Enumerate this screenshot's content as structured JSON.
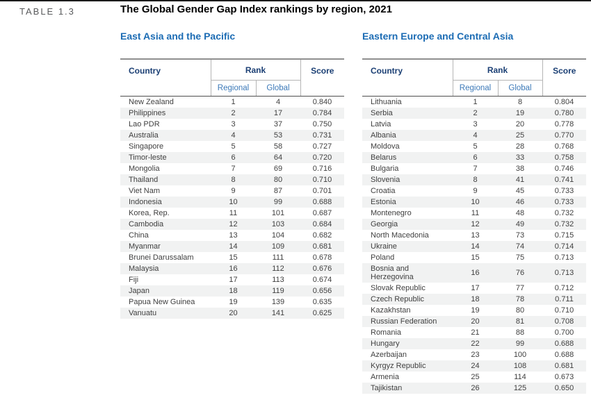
{
  "page": {
    "table_label": "TABLE 1.3",
    "title": "The Global Gender Gap Index rankings by region, 2021"
  },
  "colors": {
    "region_title_blue": "#1c6cb4",
    "header_navy": "#1b3f74",
    "subheader_blue": "#3c79b8",
    "row_stripe": "#f1f2f2",
    "data_text": "#404040"
  },
  "tables": [
    {
      "title": "East Asia and the Pacific",
      "headers": {
        "country": "Country",
        "rank": "Rank",
        "regional": "Regional",
        "global": "Global",
        "score": "Score"
      },
      "rows": [
        {
          "country": "New Zealand",
          "regional": "1",
          "global": "4",
          "score": "0.840"
        },
        {
          "country": "Philippines",
          "regional": "2",
          "global": "17",
          "score": "0.784"
        },
        {
          "country": "Lao PDR",
          "regional": "3",
          "global": "37",
          "score": "0.750"
        },
        {
          "country": "Australia",
          "regional": "4",
          "global": "53",
          "score": "0.731"
        },
        {
          "country": "Singapore",
          "regional": "5",
          "global": "58",
          "score": "0.727"
        },
        {
          "country": "Timor-leste",
          "regional": "6",
          "global": "64",
          "score": "0.720"
        },
        {
          "country": "Mongolia",
          "regional": "7",
          "global": "69",
          "score": "0.716"
        },
        {
          "country": "Thailand",
          "regional": "8",
          "global": "80",
          "score": "0.710"
        },
        {
          "country": "Viet Nam",
          "regional": "9",
          "global": "87",
          "score": "0.701"
        },
        {
          "country": "Indonesia",
          "regional": "10",
          "global": "99",
          "score": "0.688"
        },
        {
          "country": "Korea, Rep.",
          "regional": "11",
          "global": "101",
          "score": "0.687"
        },
        {
          "country": "Cambodia",
          "regional": "12",
          "global": "103",
          "score": "0.684"
        },
        {
          "country": "China",
          "regional": "13",
          "global": "104",
          "score": "0.682"
        },
        {
          "country": "Myanmar",
          "regional": "14",
          "global": "109",
          "score": "0.681"
        },
        {
          "country": "Brunei Darussalam",
          "regional": "15",
          "global": "111",
          "score": "0.678"
        },
        {
          "country": "Malaysia",
          "regional": "16",
          "global": "112",
          "score": "0.676"
        },
        {
          "country": "Fiji",
          "regional": "17",
          "global": "113",
          "score": "0.674"
        },
        {
          "country": "Japan",
          "regional": "18",
          "global": "119",
          "score": "0.656"
        },
        {
          "country": "Papua New Guinea",
          "regional": "19",
          "global": "139",
          "score": "0.635"
        },
        {
          "country": "Vanuatu",
          "regional": "20",
          "global": "141",
          "score": "0.625"
        }
      ]
    },
    {
      "title": "Eastern Europe and Central Asia",
      "headers": {
        "country": "Country",
        "rank": "Rank",
        "regional": "Regional",
        "global": "Global",
        "score": "Score"
      },
      "rows": [
        {
          "country": "Lithuania",
          "regional": "1",
          "global": "8",
          "score": "0.804"
        },
        {
          "country": "Serbia",
          "regional": "2",
          "global": "19",
          "score": "0.780"
        },
        {
          "country": "Latvia",
          "regional": "3",
          "global": "20",
          "score": "0.778"
        },
        {
          "country": "Albania",
          "regional": "4",
          "global": "25",
          "score": "0.770"
        },
        {
          "country": "Moldova",
          "regional": "5",
          "global": "28",
          "score": "0.768"
        },
        {
          "country": "Belarus",
          "regional": "6",
          "global": "33",
          "score": "0.758"
        },
        {
          "country": "Bulgaria",
          "regional": "7",
          "global": "38",
          "score": "0.746"
        },
        {
          "country": "Slovenia",
          "regional": "8",
          "global": "41",
          "score": "0.741"
        },
        {
          "country": "Croatia",
          "regional": "9",
          "global": "45",
          "score": "0.733"
        },
        {
          "country": "Estonia",
          "regional": "10",
          "global": "46",
          "score": "0.733"
        },
        {
          "country": "Montenegro",
          "regional": "11",
          "global": "48",
          "score": "0.732"
        },
        {
          "country": "Georgia",
          "regional": "12",
          "global": "49",
          "score": "0.732"
        },
        {
          "country": "North Macedonia",
          "regional": "13",
          "global": "73",
          "score": "0.715"
        },
        {
          "country": "Ukraine",
          "regional": "14",
          "global": "74",
          "score": "0.714"
        },
        {
          "country": "Poland",
          "regional": "15",
          "global": "75",
          "score": "0.713"
        },
        {
          "country": "Bosnia and Herzegovina",
          "regional": "16",
          "global": "76",
          "score": "0.713"
        },
        {
          "country": "Slovak Republic",
          "regional": "17",
          "global": "77",
          "score": "0.712"
        },
        {
          "country": "Czech Republic",
          "regional": "18",
          "global": "78",
          "score": "0.711"
        },
        {
          "country": "Kazakhstan",
          "regional": "19",
          "global": "80",
          "score": "0.710"
        },
        {
          "country": "Russian Federation",
          "regional": "20",
          "global": "81",
          "score": "0.708"
        },
        {
          "country": "Romania",
          "regional": "21",
          "global": "88",
          "score": "0.700"
        },
        {
          "country": "Hungary",
          "regional": "22",
          "global": "99",
          "score": "0.688"
        },
        {
          "country": "Azerbaijan",
          "regional": "23",
          "global": "100",
          "score": "0.688"
        },
        {
          "country": "Kyrgyz Republic",
          "regional": "24",
          "global": "108",
          "score": "0.681"
        },
        {
          "country": "Armenia",
          "regional": "25",
          "global": "114",
          "score": "0.673"
        },
        {
          "country": "Tajikistan",
          "regional": "26",
          "global": "125",
          "score": "0.650"
        }
      ]
    }
  ]
}
